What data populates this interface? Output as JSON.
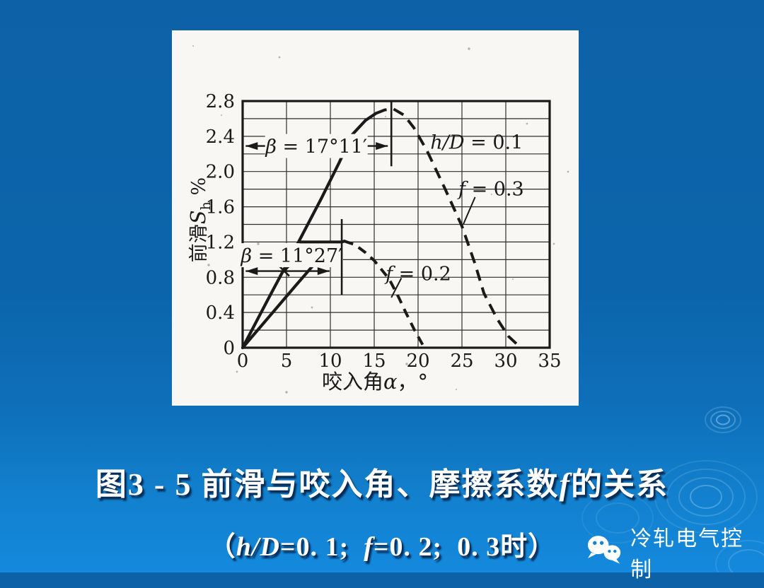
{
  "colors": {
    "bg_top": "#0d62a7",
    "bg_bottom": "#1489dd",
    "paper": "#f8f7f3",
    "ink": "#1a1a1a",
    "caption_text": "#ffffff"
  },
  "caption": {
    "line1": {
      "pre": "图3 - 5 前滑与咬入角、摩擦系数",
      "it": "f",
      "post": "的关系"
    },
    "line2": {
      "open": "（",
      "it1": "h/D",
      "seg1": "=0. 1;  ",
      "it2": "f",
      "seg2": "=0. 2;  0. 3时",
      "close": "）"
    }
  },
  "watermark": {
    "label": "冷轧电气控制",
    "icon": "wechat-logo-icon"
  },
  "chart_data": {
    "type": "line",
    "title": "",
    "xlabel_parts": {
      "cjk": "咬入角",
      "sym": "α",
      "tail": "，°"
    },
    "ylabel_parts": {
      "cjk": "前滑",
      "sym": "S",
      "sub": "h",
      "unit": " %"
    },
    "xlim": [
      0,
      35
    ],
    "ylim": [
      0,
      2.8
    ],
    "x_ticks": [
      "0",
      "5",
      "10",
      "15",
      "20",
      "25",
      "30",
      "35"
    ],
    "y_ticks": [
      "0",
      "0.4",
      "0.8",
      "1.2",
      "1.6",
      "2.0",
      "2.4",
      "2.8"
    ],
    "grid": {
      "on": true,
      "x_step": 5,
      "y_step": 0.2
    },
    "legend_position": "inline-labels",
    "series": [
      {
        "name": "f = 0.2",
        "peak_annotation": "β = 11°27′",
        "dash": "13 9",
        "solid": [
          [
            0,
            0
          ],
          [
            3,
            0.35
          ],
          [
            6,
            0.7
          ],
          [
            8,
            0.93
          ],
          [
            9.5,
            1.07
          ],
          [
            10.8,
            1.18
          ],
          [
            11.6,
            1.21
          ]
        ],
        "dashed": [
          [
            11.6,
            1.21
          ],
          [
            12.8,
            1.17
          ],
          [
            14,
            1.08
          ],
          [
            15,
            0.99
          ],
          [
            16.7,
            0.78
          ],
          [
            17.8,
            0.57
          ],
          [
            18.6,
            0.4
          ],
          [
            19.6,
            0.2
          ],
          [
            20.6,
            0.02
          ]
        ]
      },
      {
        "name": "f = 0.3",
        "peak_annotation": "β = 17°11′",
        "dash": "16 10",
        "solid": [
          [
            0,
            0
          ],
          [
            3,
            0.57
          ],
          [
            6,
            1.13
          ],
          [
            9,
            1.7
          ],
          [
            11,
            2.1
          ],
          [
            12.5,
            2.42
          ],
          [
            14,
            2.58
          ],
          [
            15.2,
            2.66
          ]
        ],
        "dashed": [
          [
            15.2,
            2.66
          ],
          [
            16.2,
            2.7
          ],
          [
            17.2,
            2.71
          ],
          [
            18.4,
            2.64
          ],
          [
            19.5,
            2.5
          ],
          [
            21,
            2.24
          ],
          [
            23,
            1.82
          ],
          [
            25,
            1.38
          ],
          [
            26.5,
            0.95
          ],
          [
            27.5,
            0.62
          ],
          [
            29,
            0.33
          ],
          [
            30.3,
            0.13
          ],
          [
            31.6,
            0.01
          ]
        ]
      }
    ],
    "annotations": [
      {
        "kind": "harrow",
        "y": 2.29,
        "x1": 0.35,
        "x2": 16.55,
        "it": "β",
        "rest": " = 17°11′",
        "lx": 8.4,
        "ly": 2.29
      },
      {
        "kind": "vline",
        "x": 16.95,
        "y1": 2.06,
        "y2": 2.8
      },
      {
        "kind": "label",
        "x": 21.4,
        "y": 2.33,
        "it": "h/D",
        "rest": " = 0.1"
      },
      {
        "kind": "label",
        "x": 24.6,
        "y": 1.8,
        "it": "f",
        "rest": " = 0.3"
      },
      {
        "kind": "leader",
        "x1": 25.15,
        "y1": 1.4,
        "x2": 26.5,
        "y2": 1.71
      },
      {
        "kind": "harrow",
        "y": 0.87,
        "x1": 0.35,
        "x2": 9.9,
        "it": "β",
        "rest": " = 11°27′",
        "lx": 5.6,
        "ly": 1.05,
        "xmark": 4.75
      },
      {
        "kind": "vline",
        "x": 11.3,
        "y1": 0.6,
        "y2": 1.46
      },
      {
        "kind": "hseg",
        "y": 1.2,
        "x1": 6.5,
        "x2": 11.3
      },
      {
        "kind": "label",
        "x": 16.3,
        "y": 0.84,
        "it": "f",
        "rest": " = 0.2"
      },
      {
        "kind": "leader",
        "x1": 16.95,
        "y1": 0.57,
        "x2": 18.1,
        "y2": 0.79
      }
    ]
  }
}
